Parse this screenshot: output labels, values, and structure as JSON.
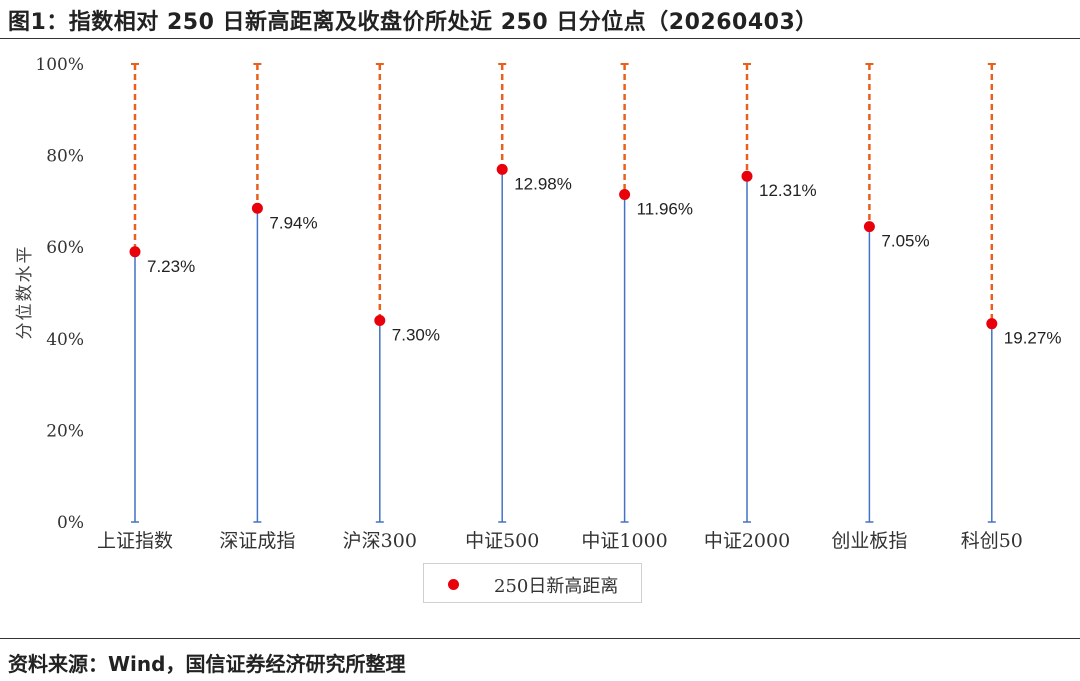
{
  "figure": {
    "title": "图1：指数相对 250 日新高距离及收盘价所处近 250 日分位点（20260403）",
    "source": "资料来源：Wind，国信证券经济研究所整理"
  },
  "chart_data": {
    "type": "scatter",
    "title": "",
    "ylabel": "分位数水平",
    "xlabel": "",
    "ylim": [
      0,
      100
    ],
    "yticks": [
      "0%",
      "20%",
      "40%",
      "60%",
      "80%",
      "100%"
    ],
    "categories": [
      "上证指数",
      "深证成指",
      "沪深300",
      "中证500",
      "中证1000",
      "中证2000",
      "创业板指",
      "科创50"
    ],
    "percentile": [
      59,
      68.5,
      44,
      77,
      71.5,
      75.5,
      64.5,
      43.3
    ],
    "series": [
      {
        "name": "250日新高距离",
        "labels": [
          "7.23%",
          "7.94%",
          "7.30%",
          "12.98%",
          "11.96%",
          "12.31%",
          "7.05%",
          "19.27%"
        ],
        "color": "#e8000b"
      }
    ],
    "upper_segment_color": "#e8601c",
    "lower_segment_color": "#4472c4",
    "legend_position": "bottom-center",
    "grid": false
  }
}
